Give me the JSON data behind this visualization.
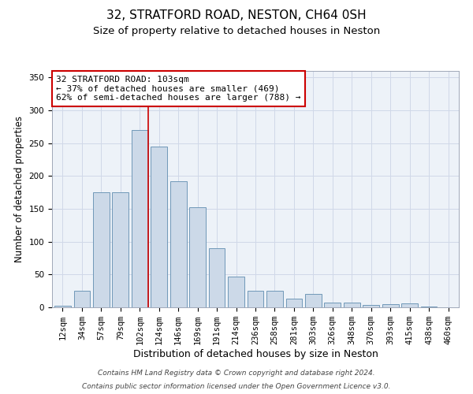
{
  "title1": "32, STRATFORD ROAD, NESTON, CH64 0SH",
  "title2": "Size of property relative to detached houses in Neston",
  "xlabel": "Distribution of detached houses by size in Neston",
  "ylabel": "Number of detached properties",
  "bar_labels": [
    "12sqm",
    "34sqm",
    "57sqm",
    "79sqm",
    "102sqm",
    "124sqm",
    "146sqm",
    "169sqm",
    "191sqm",
    "214sqm",
    "236sqm",
    "258sqm",
    "281sqm",
    "303sqm",
    "326sqm",
    "348sqm",
    "370sqm",
    "393sqm",
    "415sqm",
    "438sqm",
    "460sqm"
  ],
  "bar_values": [
    2,
    25,
    175,
    175,
    270,
    245,
    192,
    152,
    90,
    47,
    25,
    25,
    13,
    20,
    7,
    7,
    4,
    5,
    6,
    1,
    0
  ],
  "bar_color": "#ccd9e8",
  "bar_edge_color": "#7098b8",
  "grid_color": "#d0d8e8",
  "background_color": "#edf2f8",
  "red_line_index": 4,
  "annotation_text": "32 STRATFORD ROAD: 103sqm\n← 37% of detached houses are smaller (469)\n62% of semi-detached houses are larger (788) →",
  "annotation_box_color": "#ffffff",
  "annotation_box_edge": "#cc0000",
  "footer1": "Contains HM Land Registry data © Crown copyright and database right 2024.",
  "footer2": "Contains public sector information licensed under the Open Government Licence v3.0.",
  "ylim": [
    0,
    360
  ],
  "title1_fontsize": 11,
  "title2_fontsize": 9.5,
  "xlabel_fontsize": 9,
  "ylabel_fontsize": 8.5,
  "tick_fontsize": 7.5,
  "annotation_fontsize": 8,
  "footer_fontsize": 6.5
}
